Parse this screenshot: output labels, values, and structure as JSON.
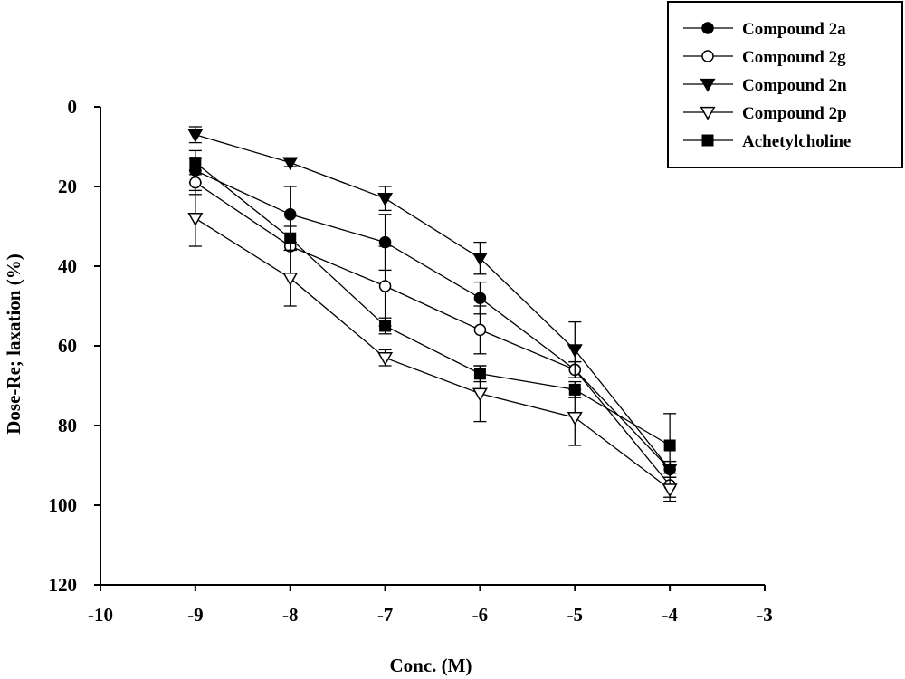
{
  "chart_data": {
    "type": "line",
    "title": "",
    "xlabel": "Conc. (M)",
    "ylabel": "Dose-Re; laxation (%)",
    "xlim": [
      -10,
      -3
    ],
    "ylim": [
      0,
      120
    ],
    "y_inverted": true,
    "xticks": [
      -10,
      -9,
      -8,
      -7,
      -6,
      -5,
      -4,
      -3
    ],
    "yticks": [
      0,
      20,
      40,
      60,
      80,
      100,
      120
    ],
    "grid": false,
    "legend_position": "top-right",
    "x": [
      -9,
      -8,
      -7,
      -6,
      -5,
      -4
    ],
    "series": [
      {
        "name": "Compound 2a",
        "marker": "filled-circle",
        "values": [
          16,
          27,
          34,
          48,
          66,
          91
        ],
        "errors": [
          3,
          7,
          7,
          4,
          2,
          2
        ]
      },
      {
        "name": "Compound 2g",
        "marker": "open-circle",
        "values": [
          19,
          35,
          45,
          56,
          66,
          95
        ],
        "errors": [
          3,
          1,
          10,
          6,
          2,
          3
        ]
      },
      {
        "name": "Compound 2n",
        "marker": "filled-triangle-down",
        "values": [
          7,
          14,
          23,
          38,
          61,
          91
        ],
        "errors": [
          2,
          1,
          3,
          4,
          7,
          2
        ]
      },
      {
        "name": "Compound 2p",
        "marker": "open-triangle-down",
        "values": [
          28,
          43,
          63,
          72,
          78,
          96
        ],
        "errors": [
          7,
          7,
          2,
          7,
          7,
          3
        ]
      },
      {
        "name": "Achetylcholine",
        "marker": "filled-square",
        "values": [
          14,
          33,
          55,
          67,
          71,
          85
        ],
        "errors": [
          3,
          3,
          2,
          2,
          2,
          8
        ]
      }
    ]
  }
}
